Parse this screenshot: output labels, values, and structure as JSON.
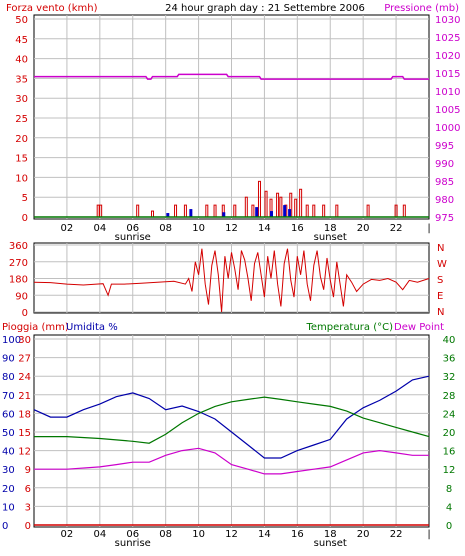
{
  "title": "24 hour graph day : 21 Settembre 2006",
  "colors": {
    "wind": "#d40000",
    "pressure": "#cc00cc",
    "rain": "#d40000",
    "humidity": "#0000aa",
    "temperature": "#007700",
    "dewpoint": "#cc00cc",
    "frame": "#000000",
    "grid": "#c0c0c0"
  },
  "chart_data": [
    {
      "type": "bar",
      "title": "24 hour graph day : 21 Settembre 2006",
      "ylabel": "Forza vento (kmh)",
      "ylabel_right": "Pressione (mb)",
      "ylim": [
        0,
        50
      ],
      "ylim_right": [
        975,
        1030
      ],
      "yticks": [
        "0",
        "5",
        "10",
        "15",
        "20",
        "25",
        "30",
        "35",
        "40",
        "45",
        "50"
      ],
      "yticks_right": [
        "975",
        "980",
        "985",
        "990",
        "995",
        "1000",
        "1005",
        "1010",
        "1015",
        "1020",
        "1025",
        "1030"
      ],
      "xticks": [
        "02",
        "04",
        "06",
        "08",
        "10",
        "12",
        "14",
        "16",
        "18",
        "20",
        "22"
      ],
      "x_markers": [
        "sunrise",
        "sunset"
      ],
      "series": [
        {
          "name": "Forza vento (kmh)",
          "type": "bar",
          "points": [
            [
              3.9,
              3
            ],
            [
              4.05,
              3
            ],
            [
              6.3,
              3
            ],
            [
              7.2,
              1.5
            ],
            [
              8.6,
              3
            ],
            [
              9.2,
              3
            ],
            [
              10.5,
              3
            ],
            [
              11.0,
              3
            ],
            [
              11.5,
              3
            ],
            [
              12.2,
              3
            ],
            [
              12.9,
              5
            ],
            [
              13.3,
              3
            ],
            [
              13.7,
              9
            ],
            [
              14.1,
              6.5
            ],
            [
              14.4,
              4.5
            ],
            [
              14.8,
              6
            ],
            [
              15.0,
              5
            ],
            [
              15.3,
              3
            ],
            [
              15.6,
              6
            ],
            [
              15.9,
              4.5
            ],
            [
              16.2,
              7
            ],
            [
              16.6,
              3
            ],
            [
              17.0,
              3
            ],
            [
              17.6,
              3
            ],
            [
              18.4,
              3
            ],
            [
              20.3,
              3
            ],
            [
              22.0,
              3
            ],
            [
              22.5,
              3
            ]
          ]
        },
        {
          "name": "Raffica",
          "type": "bar",
          "points": [
            [
              8.1,
              1
            ],
            [
              9.5,
              2
            ],
            [
              11.5,
              1.2
            ],
            [
              13.5,
              2.5
            ],
            [
              14.4,
              1.5
            ],
            [
              15.2,
              3
            ],
            [
              15.5,
              2
            ]
          ]
        },
        {
          "name": "Pressione (mb)",
          "type": "line",
          "points": [
            [
              0,
              1014
            ],
            [
              6.8,
              1014
            ],
            [
              6.9,
              1013.3
            ],
            [
              7.1,
              1013.3
            ],
            [
              7.2,
              1014
            ],
            [
              8.7,
              1014
            ],
            [
              8.8,
              1014.6
            ],
            [
              11.7,
              1014.6
            ],
            [
              11.8,
              1014
            ],
            [
              13.7,
              1014
            ],
            [
              13.8,
              1013.3
            ],
            [
              21.7,
              1013.3
            ],
            [
              21.8,
              1014
            ],
            [
              22.4,
              1014
            ],
            [
              22.5,
              1013.3
            ],
            [
              24,
              1013.3
            ]
          ]
        },
        {
          "name": "Pioggia base",
          "type": "line",
          "points": [
            [
              0,
              0
            ],
            [
              24,
              0
            ]
          ]
        }
      ]
    },
    {
      "type": "line",
      "ylabel_right": [
        "N",
        "W",
        "S",
        "E",
        "N"
      ],
      "ylim": [
        0,
        360
      ],
      "yticks": [
        "0",
        "90",
        "180",
        "270",
        "360"
      ],
      "series": [
        {
          "name": "Direzione vento",
          "points": [
            [
              0,
              160
            ],
            [
              1,
              158
            ],
            [
              2,
              150
            ],
            [
              3,
              145
            ],
            [
              3.8,
              150
            ],
            [
              4.2,
              152
            ],
            [
              4.5,
              90
            ],
            [
              4.7,
              150
            ],
            [
              5.5,
              150
            ],
            [
              6.5,
              155
            ],
            [
              7.5,
              160
            ],
            [
              8.5,
              165
            ],
            [
              9.2,
              150
            ],
            [
              9.4,
              180
            ],
            [
              9.6,
              110
            ],
            [
              9.8,
              270
            ],
            [
              10,
              200
            ],
            [
              10.2,
              340
            ],
            [
              10.4,
              150
            ],
            [
              10.6,
              40
            ],
            [
              10.8,
              250
            ],
            [
              11,
              330
            ],
            [
              11.2,
              200
            ],
            [
              11.4,
              0
            ],
            [
              11.6,
              300
            ],
            [
              11.8,
              180
            ],
            [
              12,
              320
            ],
            [
              12.2,
              230
            ],
            [
              12.4,
              120
            ],
            [
              12.6,
              330
            ],
            [
              12.8,
              280
            ],
            [
              13,
              180
            ],
            [
              13.2,
              60
            ],
            [
              13.4,
              260
            ],
            [
              13.6,
              320
            ],
            [
              13.8,
              200
            ],
            [
              14,
              80
            ],
            [
              14.2,
              300
            ],
            [
              14.4,
              180
            ],
            [
              14.6,
              330
            ],
            [
              14.8,
              150
            ],
            [
              15,
              30
            ],
            [
              15.2,
              260
            ],
            [
              15.4,
              340
            ],
            [
              15.6,
              170
            ],
            [
              15.8,
              80
            ],
            [
              16,
              300
            ],
            [
              16.2,
              200
            ],
            [
              16.4,
              330
            ],
            [
              16.6,
              150
            ],
            [
              16.8,
              60
            ],
            [
              17,
              250
            ],
            [
              17.2,
              330
            ],
            [
              17.4,
              190
            ],
            [
              17.6,
              120
            ],
            [
              17.8,
              290
            ],
            [
              18,
              170
            ],
            [
              18.2,
              80
            ],
            [
              18.4,
              270
            ],
            [
              18.6,
              150
            ],
            [
              18.8,
              30
            ],
            [
              19,
              200
            ],
            [
              19.3,
              160
            ],
            [
              19.6,
              110
            ],
            [
              20,
              150
            ],
            [
              20.5,
              175
            ],
            [
              21,
              170
            ],
            [
              21.5,
              180
            ],
            [
              22,
              160
            ],
            [
              22.4,
              120
            ],
            [
              22.8,
              170
            ],
            [
              23.3,
              160
            ],
            [
              24,
              180
            ]
          ]
        }
      ]
    },
    {
      "type": "line",
      "ylabel": "Pioggia (mm)",
      "ylabel2": "Umidita %",
      "ylabel_right": "Temperatura (°C)",
      "ylabel_right2": "Dew Point",
      "ylim": [
        0,
        100
      ],
      "ylim_rain": [
        0,
        30
      ],
      "ylim_right": [
        0,
        40
      ],
      "yticks": [
        "0",
        "10",
        "20",
        "30",
        "40",
        "50",
        "60",
        "70",
        "80",
        "90",
        "100"
      ],
      "yticks_rain": [
        "0",
        "3",
        "6",
        "9",
        "12",
        "15",
        "18",
        "21",
        "24",
        "27",
        "30"
      ],
      "yticks_right": [
        "0",
        "4",
        "8",
        "12",
        "16",
        "20",
        "24",
        "28",
        "32",
        "36",
        "40"
      ],
      "xticks": [
        "02",
        "04",
        "06",
        "08",
        "10",
        "12",
        "14",
        "16",
        "18",
        "20",
        "22"
      ],
      "x_markers": [
        "sunrise",
        "sunset"
      ],
      "series": [
        {
          "name": "Umidita %",
          "points": [
            [
              0,
              62
            ],
            [
              1,
              58
            ],
            [
              2,
              58
            ],
            [
              3,
              62
            ],
            [
              4,
              65
            ],
            [
              5,
              69
            ],
            [
              6,
              71
            ],
            [
              7,
              68
            ],
            [
              8,
              62
            ],
            [
              9,
              64
            ],
            [
              10,
              61
            ],
            [
              11,
              57
            ],
            [
              12,
              50
            ],
            [
              13,
              43
            ],
            [
              14,
              36
            ],
            [
              15,
              36
            ],
            [
              16,
              40
            ],
            [
              17,
              43
            ],
            [
              18,
              46
            ],
            [
              19,
              57
            ],
            [
              20,
              63
            ],
            [
              21,
              67
            ],
            [
              22,
              72
            ],
            [
              23,
              78
            ],
            [
              24,
              80
            ]
          ]
        },
        {
          "name": "Pioggia (mm)",
          "points": [
            [
              0,
              0
            ],
            [
              24,
              0
            ]
          ]
        },
        {
          "name": "Temperatura (°C)",
          "points": [
            [
              0,
              19
            ],
            [
              2,
              19
            ],
            [
              4,
              18.6
            ],
            [
              5,
              18.3
            ],
            [
              6,
              18
            ],
            [
              7,
              17.6
            ],
            [
              8,
              19.5
            ],
            [
              9,
              22
            ],
            [
              10,
              24
            ],
            [
              11,
              25.5
            ],
            [
              12,
              26.5
            ],
            [
              13,
              27
            ],
            [
              14,
              27.5
            ],
            [
              15,
              27
            ],
            [
              16,
              26.5
            ],
            [
              17,
              26
            ],
            [
              18,
              25.5
            ],
            [
              19,
              24.5
            ],
            [
              20,
              23
            ],
            [
              21,
              22
            ],
            [
              22,
              21
            ],
            [
              23,
              20
            ],
            [
              24,
              19
            ]
          ]
        },
        {
          "name": "Dew Point",
          "points": [
            [
              0,
              12
            ],
            [
              2,
              12
            ],
            [
              4,
              12.5
            ],
            [
              5,
              13
            ],
            [
              6,
              13.5
            ],
            [
              7,
              13.5
            ],
            [
              8,
              15
            ],
            [
              9,
              16
            ],
            [
              10,
              16.5
            ],
            [
              11,
              15.5
            ],
            [
              12,
              13
            ],
            [
              13,
              12
            ],
            [
              14,
              11
            ],
            [
              15,
              11
            ],
            [
              16,
              11.5
            ],
            [
              17,
              12
            ],
            [
              18,
              12.5
            ],
            [
              19,
              14
            ],
            [
              20,
              15.5
            ],
            [
              21,
              16
            ],
            [
              22,
              15.5
            ],
            [
              23,
              15
            ],
            [
              24,
              15
            ]
          ]
        }
      ]
    }
  ]
}
